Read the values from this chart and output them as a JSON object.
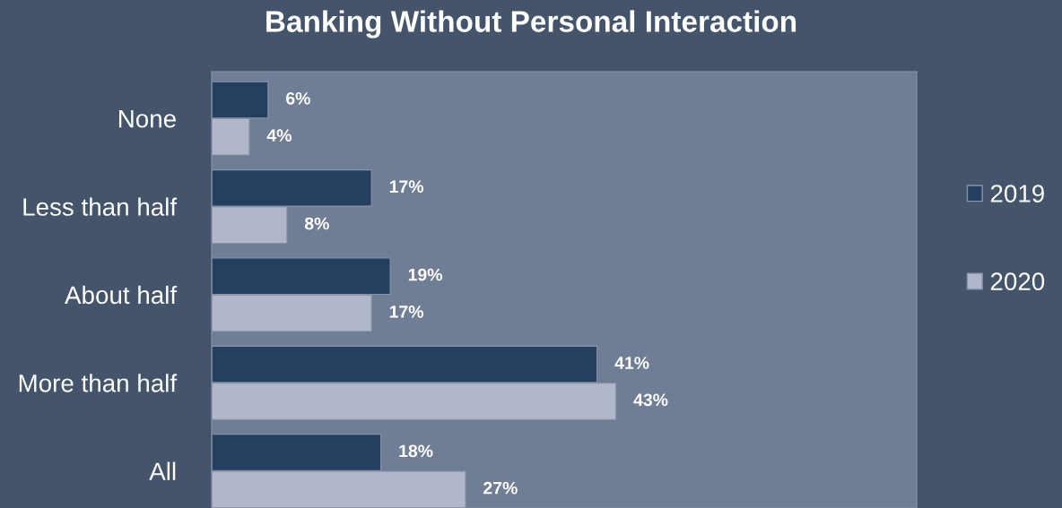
{
  "chart_data": {
    "type": "bar",
    "orientation": "horizontal",
    "title": "Banking Without Personal Interaction",
    "categories": [
      "None",
      "Less than half",
      "About half",
      "More than half",
      "All"
    ],
    "series": [
      {
        "name": "2019",
        "color": "#243f60",
        "values": [
          6,
          17,
          19,
          41,
          18
        ],
        "value_labels": [
          "6%",
          "17%",
          "19%",
          "41%",
          "18%"
        ]
      },
      {
        "name": "2020",
        "color": "#b0b7cb",
        "values": [
          4,
          8,
          17,
          43,
          27
        ],
        "value_labels": [
          "4%",
          "8%",
          "17%",
          "43%",
          "27%"
        ]
      }
    ],
    "xlim": [
      0,
      75
    ],
    "relative": false,
    "grid": false,
    "legend": "right",
    "tick_labels": "y"
  }
}
